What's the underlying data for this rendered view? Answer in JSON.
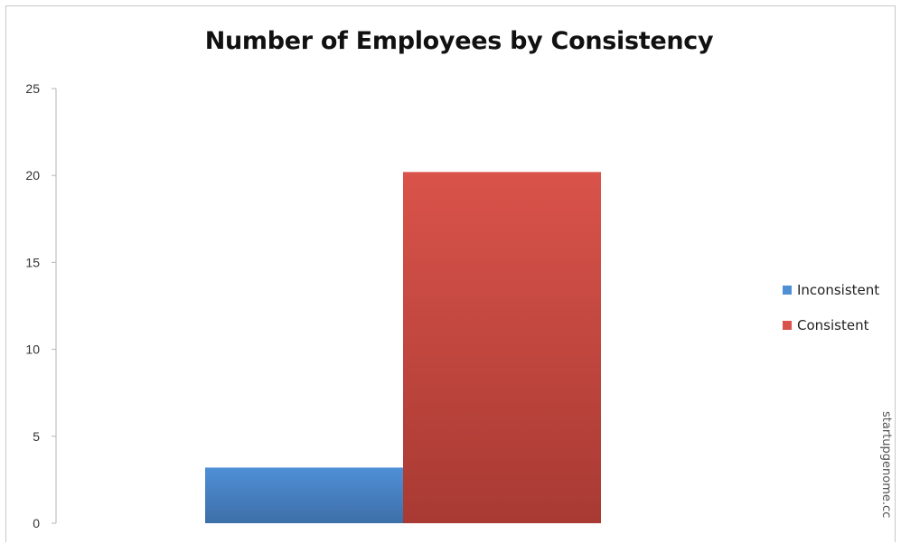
{
  "colors": {
    "inconsistent_top": "#4f8fd6",
    "inconsistent_bottom": "#3d6fa8",
    "consistent_top": "#d9534a",
    "consistent_bottom": "#a83a33",
    "axis": "#b5b5b5"
  },
  "watermark": "startupgenome.cc",
  "chart_data": {
    "type": "bar",
    "title": "Number of Employees by Consistency",
    "xlabel": "",
    "ylabel": "",
    "ylim": [
      0,
      25
    ],
    "yticks": [
      "0",
      "5",
      "10",
      "15",
      "20",
      "25"
    ],
    "grid": false,
    "legend_position": "right",
    "series": [
      {
        "name": "Inconsistent",
        "values": [
          3.2
        ]
      },
      {
        "name": "Consistent",
        "values": [
          20.2
        ]
      }
    ]
  }
}
